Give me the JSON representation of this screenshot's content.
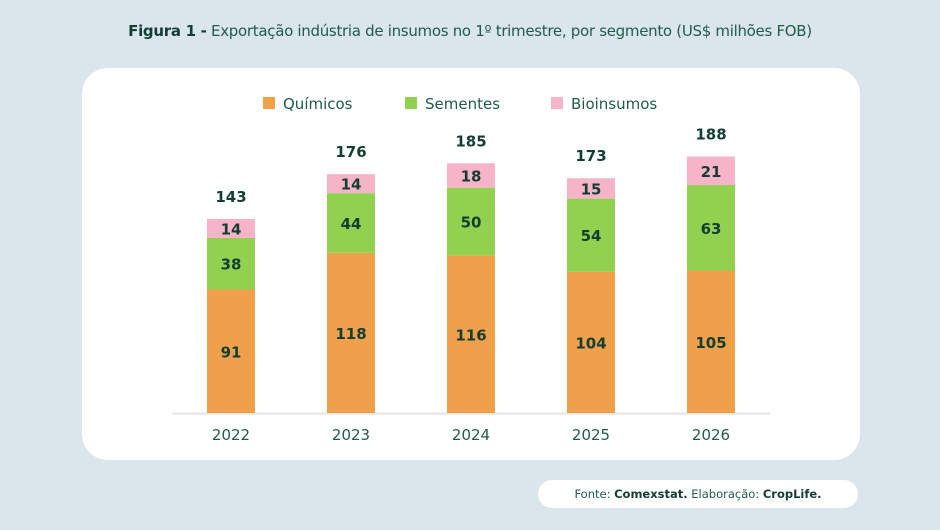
{
  "title": {
    "prefix": "Figura 1 -",
    "text": "Exportação indústria de insumos no 1º trimestre, por segmento (US$ milhões FOB)"
  },
  "source": {
    "label1": "Fonte:",
    "value1": "Comexstat.",
    "label2": "Elaboração:",
    "value2": "CropLife."
  },
  "chart_data": {
    "type": "bar",
    "stacked": true,
    "title": "Exportação indústria de insumos no 1º trimestre, por segmento (US$ milhões FOB)",
    "xlabel": "",
    "ylabel": "",
    "categories": [
      "2022",
      "2023",
      "2024",
      "2025",
      "2026"
    ],
    "series": [
      {
        "name": "Químicos",
        "color": "#f0a04b",
        "values": [
          91,
          118,
          116,
          104,
          105
        ]
      },
      {
        "name": "Sementes",
        "color": "#92d050",
        "values": [
          38,
          44,
          50,
          54,
          63
        ]
      },
      {
        "name": "Bioinsumos",
        "color": "#f7b3c7",
        "values": [
          14,
          14,
          18,
          15,
          21
        ]
      }
    ],
    "totals": [
      143,
      176,
      185,
      173,
      188
    ],
    "legend_position": "top-center",
    "grid": false,
    "ylim": [
      0,
      200
    ]
  }
}
